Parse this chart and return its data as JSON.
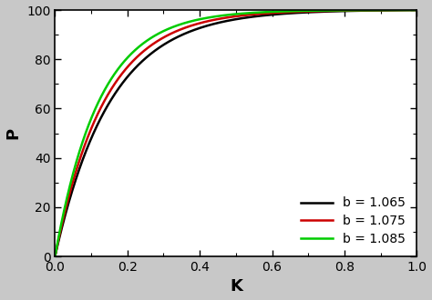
{
  "title": "",
  "xlabel": "K",
  "ylabel": "P",
  "xlim": [
    0.0,
    1.0
  ],
  "ylim": [
    0,
    100
  ],
  "xticks": [
    0.0,
    0.2,
    0.4,
    0.6,
    0.8,
    1.0
  ],
  "yticks": [
    0,
    20,
    40,
    60,
    80,
    100
  ],
  "series": [
    {
      "b": 1.065,
      "a": 6.5,
      "color": "#000000",
      "label": "b = 1.065"
    },
    {
      "b": 1.075,
      "a": 7.3,
      "color": "#cc0000",
      "label": "b = 1.075"
    },
    {
      "b": 1.085,
      "a": 8.2,
      "color": "#00cc00",
      "label": "b = 1.085"
    }
  ],
  "legend_loc": "lower right",
  "legend_fontsize": 10,
  "axis_fontsize": 13,
  "tick_fontsize": 10,
  "linewidth": 1.8,
  "plot_bg": "#ffffff",
  "figure_bg": "#c8c8c8"
}
